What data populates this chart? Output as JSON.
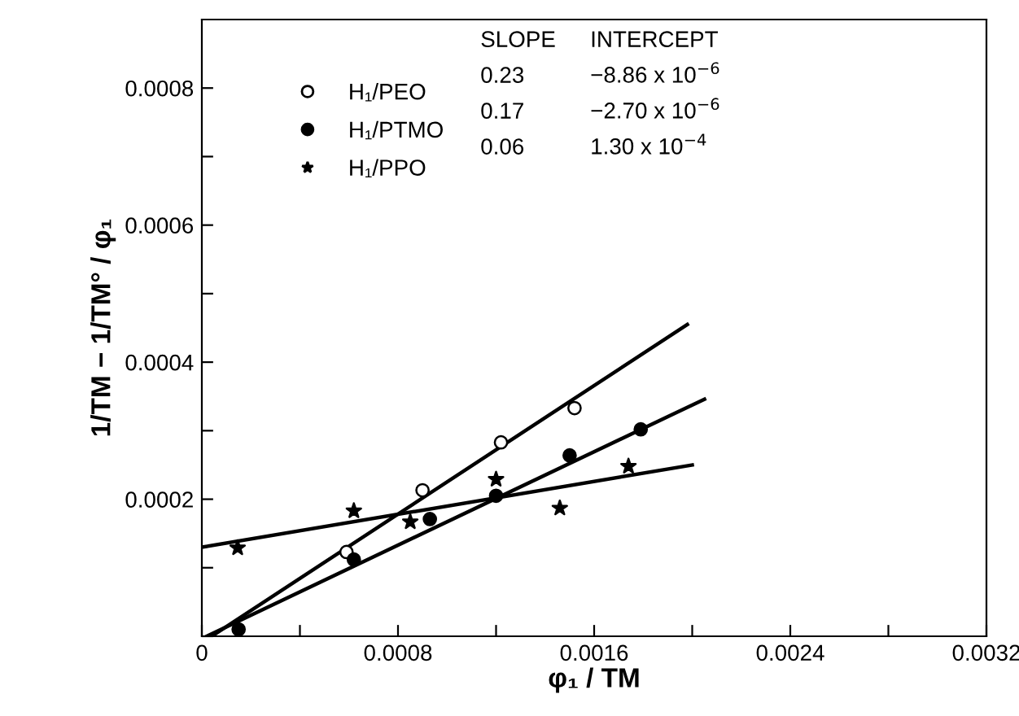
{
  "chart_data": {
    "type": "scatter",
    "xlabel": "φ₁ / TM",
    "ylabel": "1/TM − 1/TM° / φ₁",
    "xlim": [
      0,
      0.0032
    ],
    "ylim": [
      0,
      0.0009
    ],
    "xticks": [
      0,
      {
        "value": 0.0004,
        "label": null
      },
      0.0008,
      {
        "value": 0.0012,
        "label": null
      },
      0.0016,
      {
        "value": 0.002,
        "label": null
      },
      0.0024,
      {
        "value": 0.0028,
        "label": null
      },
      0.0032
    ],
    "yticks": [
      {
        "value": 0,
        "label": null
      },
      {
        "value": 0.0001,
        "label": null
      },
      0.0002,
      {
        "value": 0.0003,
        "label": null
      },
      0.0004,
      {
        "value": 0.0005,
        "label": null
      },
      0.0006,
      {
        "value": 0.0007,
        "label": null
      },
      0.0008
    ],
    "grid": false,
    "legend": "top left",
    "series": [
      {
        "name": "H₁/PEO",
        "color": "#ffffff",
        "marker": "circle",
        "x": [
          0.00059,
          0.0009,
          0.00122,
          0.00152
        ],
        "values": [
          0.000123,
          0.000213,
          0.000283,
          0.000333
        ]
      },
      {
        "name": "H₁/PTMO",
        "color": "#000000",
        "marker": "circle",
        "x": [
          0.00015,
          0.00062,
          0.00093,
          0.0012,
          0.0015,
          0.00179
        ],
        "values": [
          1e-05,
          0.000112,
          0.000171,
          0.000205,
          0.000264,
          0.000302
        ]
      },
      {
        "name": "H₁/PPO",
        "color": "#000000",
        "marker": "star",
        "x": [
          0.000146,
          0.00062,
          0.00085,
          0.0012,
          0.00146,
          0.00174
        ],
        "values": [
          0.000129,
          0.000183,
          0.000167,
          0.000229,
          0.000187,
          0.000248
        ]
      },
      {
        "type": "line",
        "color": "#000000",
        "x": [
          4e-05,
          0.00198
        ],
        "values": [
          0,
          0.000455
        ]
      },
      {
        "type": "line",
        "color": "#000000",
        "x": [
          2e-05,
          0.00205
        ],
        "values": [
          0,
          0.000346
        ]
      },
      {
        "type": "line",
        "color": "#000000",
        "x": [
          0,
          0.002
        ],
        "values": [
          0.00013,
          0.00025
        ]
      }
    ],
    "annotations": [
      "SLOPE",
      "INTERCEPT",
      "0.23",
      "−8.86 x 10$^{−6}$",
      "0.17",
      "−2.70 x 10$^{−6}$",
      "0.06",
      "1.30 x 10$^{−4}$"
    ]
  }
}
